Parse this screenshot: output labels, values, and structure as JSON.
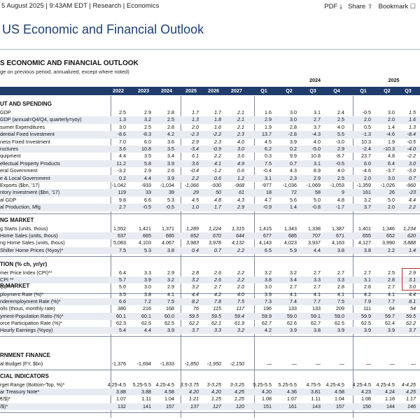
{
  "topbar": {
    "meta": "5 August 2025 | 9:43AM EDT | Research | Economics",
    "pdf": "PDF",
    "share": "Share",
    "bookmark": "Bookmark",
    "icons": {
      "pdf": "download-icon",
      "share": "share-icon",
      "bookmark": "bookmark-icon"
    }
  },
  "title": "US Economic and Financial Outlook",
  "table": {
    "title": "S ECONOMIC AND FINANCIAL OUTLOOK",
    "subtitle": "ge on previous period, annualized, except where noted)",
    "year_group_2024": "2024",
    "year_group_2025": "2025",
    "columns": [
      "2022",
      "2023",
      "2024",
      "2025",
      "2026",
      "2027",
      "Q1",
      "Q2",
      "Q3",
      "Q4",
      "Q1",
      "Q2",
      "Q3"
    ],
    "groups": [
      {
        "name": "UT AND SPENDING",
        "rows": [
          {
            "label": "GDP",
            "values": [
              "2.5",
              "2.9",
              "2.8",
              "1.7",
              "1.7",
              "2.1",
              "1.6",
              "3.0",
              "3.1",
              "2.4",
              "-0.5",
              "3.0",
              "1.5"
            ]
          },
          {
            "label": "GDP (annual=Q4/Q4, quarterly=yoy)",
            "values": [
              "1.3",
              "3.2",
              "2.5",
              "1.3",
              "1.8",
              "2.1",
              "2.9",
              "3.0",
              "2.7",
              "2.5",
              "2.0",
              "2.0",
              "1.6"
            ]
          },
          {
            "label": "sumer Expenditures",
            "values": [
              "3.0",
              "2.5",
              "2.8",
              "2.0",
              "1.6",
              "2.1",
              "1.9",
              "2.8",
              "3.7",
              "4.0",
              "0.5",
              "1.4",
              "1.3"
            ]
          },
          {
            "label": "dential Fixed Investment",
            "values": [
              "-8.6",
              "-8.3",
              "4.2",
              "-2.3",
              "-2.2",
              "2.3",
              "13.7",
              "-2.8",
              "-4.3",
              "5.5",
              "-1.3",
              "-4.6",
              "-8.4"
            ]
          },
          {
            "label": "ness Fixed Investment",
            "values": [
              "7.0",
              "6.0",
              "3.6",
              "2.9",
              "2.3",
              "4.0",
              "4.5",
              "3.9",
              "4.0",
              "-3.0",
              "10.3",
              "1.9",
              "-0.5"
            ]
          },
          {
            "label": "ructures",
            "values": [
              "3.6",
              "10.8",
              "3.5",
              "-3.4",
              "-0.9",
              "3.0",
              "6.2",
              "0.2",
              "-5.0",
              "2.9",
              "-2.4",
              "-10.3",
              "-4.0"
            ]
          },
          {
            "label": "quipment",
            "values": [
              "4.4",
              "3.5",
              "3.4",
              "6.1",
              "2.2",
              "3.6",
              "0.3",
              "9.9",
              "10.8",
              "-8.7",
              "23.7",
              "4.8",
              "-2.2"
            ]
          },
          {
            "label": "ellectual Property Products",
            "values": [
              "11.2",
              "5.8",
              "3.9",
              "3.6",
              "4.1",
              "4.9",
              "7.5",
              "0.7",
              "3.1",
              "-0.5",
              "6.0",
              "6.4",
              "3.0"
            ]
          },
          {
            "label": "eral Government",
            "values": [
              "-3.2",
              "2.9",
              "2.6",
              "-0.4",
              "-1.2",
              "0.6",
              "-0.4",
              "4.3",
              "8.9",
              "4.0",
              "-4.6",
              "-3.7",
              "-3.0"
            ]
          },
          {
            "label": "e & Local Government",
            "values": [
              "0.2",
              "4.4",
              "3.9",
              "2.2",
              "0.6",
              "1.2",
              "3.1",
              "2.3",
              "2.9",
              "2.5",
              "2.0",
              "3.0",
              "0.7"
            ]
          },
          {
            "label": "Exports ($bn, '17)",
            "values": [
              "-1,042",
              "-933",
              "-1,034",
              "-1,066",
              "-930",
              "-968",
              "-977",
              "-1,036",
              "-1,069",
              "-1,053",
              "-1,359",
              "-1,026",
              "-960"
            ]
          },
          {
            "label": "ntory Investment ($bn, '17)",
            "values": [
              "119",
              "33",
              "39",
              "29",
              "50",
              "61",
              "18",
              "72",
              "58",
              "9",
              "161",
              "26",
              "-23"
            ]
          },
          {
            "label": "al GDP",
            "values": [
              "9.8",
              "6.6",
              "5.3",
              "4.5",
              "4.8",
              "4.3",
              "4.7",
              "5.6",
              "5.0",
              "4.8",
              "3.2",
              "5.0",
              "4.4"
            ]
          },
          {
            "label": "al Production, Mfg",
            "values": [
              "2.7",
              "-0.5",
              "-0.5",
              "1.0",
              "1.7",
              "2.9",
              "-0.9",
              "1.4",
              "-0.8",
              "-1.7",
              "3.7",
              "2.0",
              "2.2"
            ]
          }
        ]
      },
      {
        "name": "NG MARKET",
        "rows": [
          {
            "label": "g Starts (units, thous)",
            "values": [
              "1,552",
              "1,421",
              "1,371",
              "1,289",
              "1,224",
              "1,315",
              "1,415",
              "1,343",
              "1,338",
              "1,387",
              "1,401",
              "1,346",
              "1,234"
            ]
          },
          {
            "label": "Home Sales (units, thous)",
            "values": [
              "637",
              "665",
              "685",
              "652",
              "670",
              "644",
              "677",
              "685",
              "707",
              "671",
              "655",
              "652",
              "620"
            ]
          },
          {
            "label": "ng Home Sales (units, thous)",
            "values": [
              "5,083",
              "4,103",
              "4,067",
              "3,983",
              "3,978",
              "4,132",
              "4,143",
              "4,023",
              "3,937",
              "4,163",
              "4,127",
              "3,990",
              "3,888"
            ]
          },
          {
            "label": "Shiller Home Prices (%yoy)*",
            "values": [
              "7.5",
              "5.3",
              "3.8",
              "0.4",
              "0.7",
              "2.2",
              "6.5",
              "5.9",
              "4.4",
              "3.8",
              "3.8",
              "2.2",
              "1.4"
            ]
          }
        ]
      },
      {
        "name": "TION (% ch, yr/yr)",
        "rows": [
          {
            "label": "mer Price Index (CPI)**",
            "values": [
              "6.4",
              "3.3",
              "2.9",
              "2.8",
              "2.6",
              "2.2",
              "3.2",
              "3.2",
              "2.7",
              "2.7",
              "2.7",
              "2.5",
              "2.9"
            ]
          },
          {
            "label": "CPI **",
            "values": [
              "5.7",
              "3.9",
              "3.2",
              "3.2",
              "2.6",
              "2.2",
              "3.8",
              "3.4",
              "3.3",
              "3.3",
              "3.1",
              "2.8",
              "3.1"
            ]
          },
          {
            "label": "CE** †",
            "values": [
              "5.0",
              "3.0",
              "2.9",
              "3.2",
              "2.7",
              "2.0",
              "3.0",
              "2.7",
              "2.7",
              "2.8",
              "2.8",
              "2.7",
              "3.0"
            ]
          }
        ]
      },
      {
        "name": "R MARKET",
        "rows": [
          {
            "label": "ployment Rate (%)*",
            "values": [
              "3.5",
              "3.8",
              "4.1",
              "4.4",
              "4.2",
              "4.0",
              "3.9",
              "4.1",
              "4.1",
              "4.1",
              "4.2",
              "4.1",
              "4.4"
            ]
          },
          {
            "label": "nderemployment Rate (%)*",
            "values": [
              "6.6",
              "7.2",
              "7.5",
              "8.2",
              "7.8",
              "7.5",
              "7.3",
              "7.4",
              "7.7",
              "7.5",
              "7.9",
              "7.7",
              "8.1"
            ]
          },
          {
            "label": "olls (thous, monthly rate)",
            "values": [
              "380",
              "216",
              "168",
              "76",
              "115",
              "117",
              "196",
              "133",
              "133",
              "209",
              "111",
              "64",
              "54"
            ]
          },
          {
            "label": "yment-Population Ratio (%)*",
            "values": [
              "60.1",
              "60.1",
              "60.0",
              "59.5",
              "59.5",
              "59.4",
              "59.9",
              "59.0",
              "59.1",
              "59.0",
              "59.9",
              "59.7",
              "59.5"
            ]
          },
          {
            "label": "orce Participation Rate (%)*",
            "values": [
              "62.3",
              "62.5",
              "62.5",
              "62.2",
              "62.1",
              "61.9",
              "62.7",
              "62.6",
              "62.7",
              "62.5",
              "62.5",
              "62.4",
              "62.2"
            ]
          },
          {
            "label": "Hourly Earnings (%yoy)",
            "values": [
              "5.4",
              "4.4",
              "3.9",
              "3.7",
              "3.3",
              "3.2",
              "4.2",
              "3.9",
              "3.8",
              "3.9",
              "3.9",
              "3.9",
              "3.7"
            ]
          }
        ]
      },
      {
        "name": "RNMENT FINANCE",
        "rows": [
          {
            "label": "al Budget (FY, $bn)",
            "values": [
              "-1,376",
              "-1,694",
              "-1,833",
              "-1,850",
              "-1,950",
              "-2,150",
              "—",
              "—",
              "—",
              "—",
              "—",
              "—",
              "—"
            ]
          }
        ]
      },
      {
        "name": "CIAL INDICATORS",
        "rows": [
          {
            "label": "rget Range (Bottom-Top, %)*",
            "values": [
              "4.25-4.5",
              "5.25-5.5",
              "4.25-4.5",
              "3.5-3.75",
              "3-3.25",
              "3-3.25",
              "5.25-5.5",
              "5.25-5.5",
              "4.75-5",
              "4.25-4.5",
              "4.25-4.5",
              "4.25-4.5",
              "4-4.25"
            ]
          },
          {
            "label": "ar Treasury Note*",
            "values": [
              "3.88",
              "3.88",
              "4.58",
              "4.20",
              "4.20",
              "4.25",
              "4.20",
              "4.36",
              "3.81",
              "4.58",
              "4.23",
              "4.24",
              "4.25"
            ]
          },
          {
            "label": "€/$)*",
            "values": [
              "1.07",
              "1.11",
              "1.04",
              "1.21",
              "1.25",
              "1.25",
              "1.08",
              "1.07",
              "1.11",
              "1.04",
              "1.08",
              "1.18",
              "1.17"
            ]
          },
          {
            "label": "/$)*",
            "values": [
              "132",
              "141",
              "157",
              "137",
              "127",
              "120",
              "151",
              "161",
              "143",
              "157",
              "150",
              "144",
              "146"
            ]
          }
        ]
      }
    ]
  }
}
